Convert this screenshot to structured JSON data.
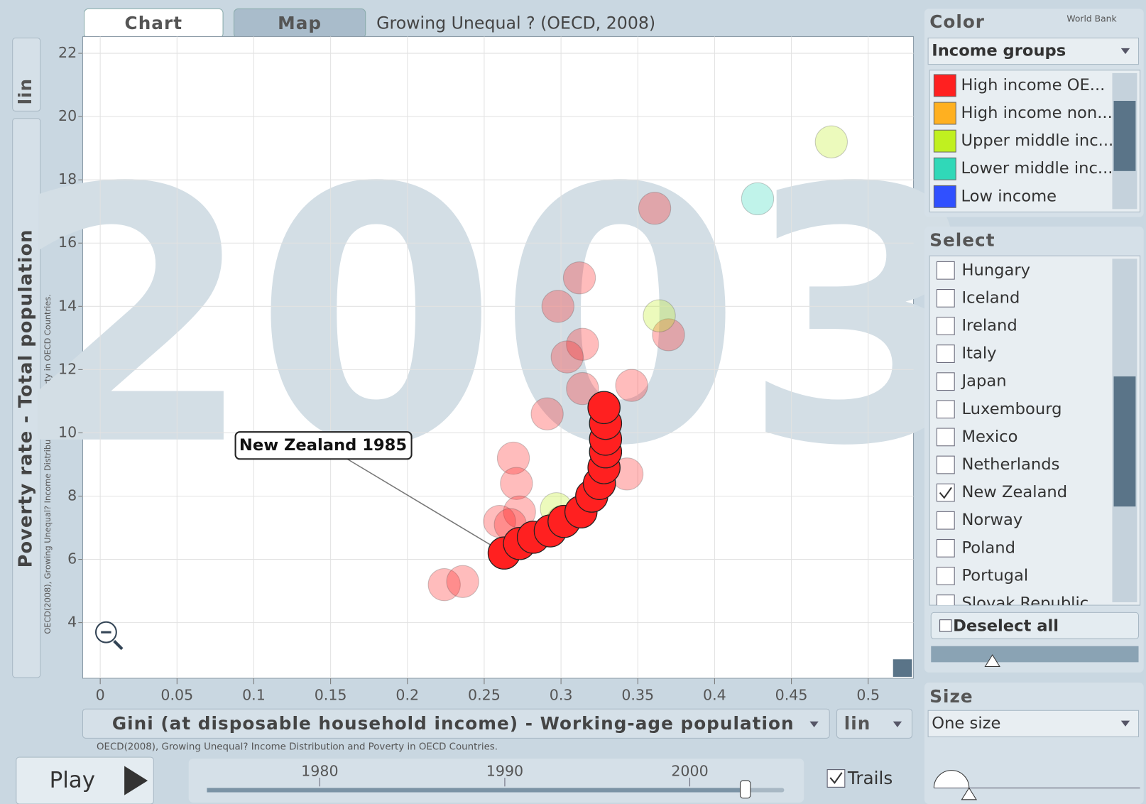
{
  "chart_data": {
    "type": "scatter",
    "title": "Growing Unequal ? (OECD, 2008)",
    "year": 2003,
    "x_label": "Gini (at disposable household income) - Working-age population",
    "y_label": "Poverty rate - Total population",
    "xlim": [
      -0.0114,
      0.5295
    ],
    "ylim": [
      2.24,
      22.53
    ],
    "xticks": [
      0,
      0.05,
      0.1,
      0.15,
      0.2,
      0.25,
      0.3,
      0.35,
      0.4,
      0.45,
      0.5
    ],
    "yticks": [
      4,
      6,
      8,
      10,
      12,
      14,
      16,
      18,
      20,
      22
    ],
    "grid": true,
    "faded_opacity": 0.3,
    "series": [
      {
        "name": "High income OE...",
        "color": "#ff2020",
        "x": [
          0.361,
          0.312,
          0.298,
          0.314,
          0.304,
          0.314,
          0.346,
          0.37,
          0.291,
          0.269,
          0.271,
          0.343,
          0.273,
          0.26,
          0.267,
          0.224,
          0.236
        ],
        "y": [
          17.1,
          14.9,
          14.0,
          12.8,
          12.4,
          11.4,
          11.5,
          13.1,
          10.6,
          9.2,
          8.4,
          8.7,
          7.5,
          7.2,
          7.1,
          5.2,
          5.3
        ]
      },
      {
        "name": "High income non...",
        "color": "#ffb020",
        "x": [
          0.301
        ],
        "y": [
          7.2
        ]
      },
      {
        "name": "Upper middle inc...",
        "color": "#c0f020",
        "x": [
          0.476,
          0.364,
          0.297
        ],
        "y": [
          19.2,
          13.7,
          7.6
        ]
      },
      {
        "name": "Lower middle inc...",
        "color": "#30d8b8",
        "x": [
          0.428
        ],
        "y": [
          17.4
        ]
      },
      {
        "name": "Low income",
        "color": "#3050ff",
        "x": [],
        "y": []
      }
    ],
    "trail": {
      "label": "New Zealand 1985",
      "color": "#ff2020",
      "x": [
        0.263,
        0.273,
        0.282,
        0.293,
        0.302,
        0.313,
        0.32,
        0.325,
        0.328,
        0.329,
        0.329,
        0.329,
        0.328
      ],
      "y": [
        6.2,
        6.5,
        6.7,
        6.9,
        7.2,
        7.5,
        8.0,
        8.4,
        8.9,
        9.4,
        9.8,
        10.3,
        10.8
      ]
    }
  },
  "ui": {
    "tabs": [
      "Chart",
      "Map"
    ],
    "y_scale": "lin",
    "x_scale": "lin",
    "source": "OECD(2008), Growing Unequal? Income Distribution and Poverty in OECD Countries.",
    "color_panel": {
      "heading": "Color",
      "provider": "World Bank",
      "dropdown": "Income groups"
    },
    "select_panel": {
      "heading": "Select",
      "items": [
        "Hungary",
        "Iceland",
        "Ireland",
        "Italy",
        "Japan",
        "Luxembourg",
        "Mexico",
        "Netherlands",
        "New Zealand",
        "Norway",
        "Poland",
        "Portugal",
        "Slovak Republic"
      ],
      "checked": [
        false,
        false,
        false,
        false,
        false,
        false,
        false,
        false,
        true,
        false,
        false,
        false,
        false
      ],
      "deselect": "Deselect all"
    },
    "size_panel": {
      "heading": "Size",
      "dropdown": "One size"
    },
    "play": "Play",
    "trails": "Trails",
    "timeline": {
      "lim": [
        1973.9,
        2005.1
      ],
      "ticks": [
        1980,
        1990,
        2000
      ]
    }
  }
}
